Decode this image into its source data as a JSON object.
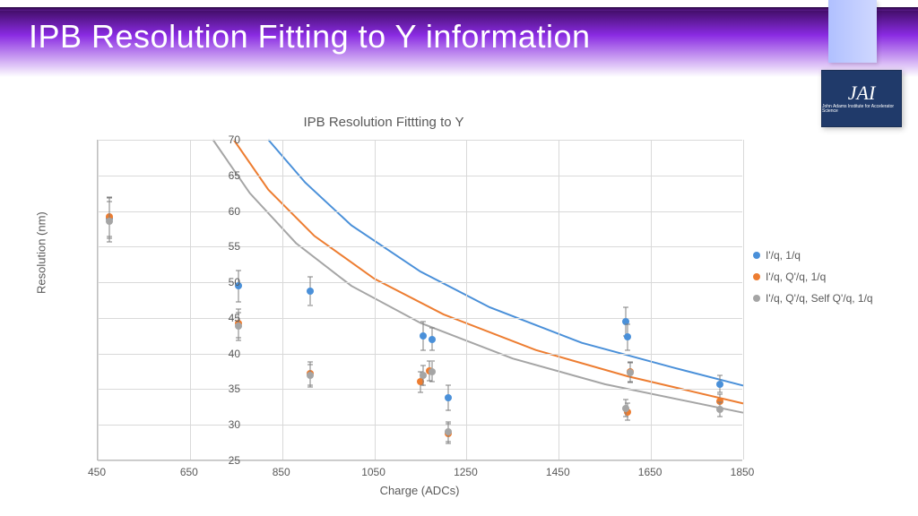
{
  "slide": {
    "title": "IPB Resolution Fitting to Y information",
    "logo": {
      "main": "JAI",
      "sub": "John Adams Institute\nfor Accelerator Science"
    }
  },
  "chart": {
    "type": "scatter-with-curves",
    "title": "IPB Resolution Fittting to Y",
    "xlabel": "Charge (ADCs)",
    "ylabel": "Resolution (nm)",
    "xlim": [
      450,
      1850
    ],
    "ylim": [
      25,
      70
    ],
    "xtick_step": 200,
    "ytick_step": 5,
    "background_color": "#ffffff",
    "grid_color": "#d9d9d9",
    "axis_color": "#bfbfbf",
    "text_color": "#595959",
    "title_fontsize": 15,
    "label_fontsize": 13,
    "tick_fontsize": 12,
    "marker_size": 8,
    "errorbar_color": "#7f7f7f",
    "series": [
      {
        "name": "I'/q, 1/q",
        "color": "#4a90d9",
        "points": [
          {
            "x": 475,
            "y": 59.0,
            "err": 2.8
          },
          {
            "x": 755,
            "y": 49.5,
            "err": 2.2
          },
          {
            "x": 910,
            "y": 48.8,
            "err": 2.0
          },
          {
            "x": 1155,
            "y": 42.5,
            "err": 2.0
          },
          {
            "x": 1175,
            "y": 42.0,
            "err": 1.6
          },
          {
            "x": 1210,
            "y": 33.8,
            "err": 1.8
          },
          {
            "x": 1595,
            "y": 44.5,
            "err": 2.0
          },
          {
            "x": 1600,
            "y": 42.3,
            "err": 1.8
          },
          {
            "x": 1800,
            "y": 35.7,
            "err": 1.2
          }
        ],
        "curve": [
          {
            "x": 820,
            "y": 70.0
          },
          {
            "x": 900,
            "y": 64.0
          },
          {
            "x": 1000,
            "y": 58.0
          },
          {
            "x": 1150,
            "y": 51.5
          },
          {
            "x": 1300,
            "y": 46.5
          },
          {
            "x": 1500,
            "y": 41.5
          },
          {
            "x": 1700,
            "y": 38.0
          },
          {
            "x": 1850,
            "y": 35.5
          }
        ]
      },
      {
        "name": "I'/q, Q'/q, 1/q",
        "color": "#ed7d31",
        "points": [
          {
            "x": 475,
            "y": 59.2,
            "err": 2.8
          },
          {
            "x": 755,
            "y": 44.2,
            "err": 2.0
          },
          {
            "x": 910,
            "y": 37.2,
            "err": 1.6
          },
          {
            "x": 1150,
            "y": 36.0,
            "err": 1.4
          },
          {
            "x": 1170,
            "y": 37.6,
            "err": 1.4
          },
          {
            "x": 1210,
            "y": 28.8,
            "err": 1.4
          },
          {
            "x": 1600,
            "y": 31.8,
            "err": 1.2
          },
          {
            "x": 1605,
            "y": 37.4,
            "err": 1.4
          },
          {
            "x": 1800,
            "y": 33.3,
            "err": 1.0
          }
        ],
        "curve": [
          {
            "x": 745,
            "y": 70.0
          },
          {
            "x": 820,
            "y": 63.0
          },
          {
            "x": 920,
            "y": 56.5
          },
          {
            "x": 1050,
            "y": 50.5
          },
          {
            "x": 1200,
            "y": 45.5
          },
          {
            "x": 1400,
            "y": 40.5
          },
          {
            "x": 1600,
            "y": 36.8
          },
          {
            "x": 1850,
            "y": 33.0
          }
        ]
      },
      {
        "name": "I'/q, Q'/q, Self Q'/q, 1/q",
        "color": "#a5a5a5",
        "points": [
          {
            "x": 475,
            "y": 58.5,
            "err": 2.8
          },
          {
            "x": 755,
            "y": 43.8,
            "err": 2.0
          },
          {
            "x": 910,
            "y": 36.9,
            "err": 1.6
          },
          {
            "x": 1155,
            "y": 36.9,
            "err": 1.4
          },
          {
            "x": 1175,
            "y": 37.5,
            "err": 1.4
          },
          {
            "x": 1210,
            "y": 29.0,
            "err": 1.4
          },
          {
            "x": 1595,
            "y": 32.3,
            "err": 1.2
          },
          {
            "x": 1605,
            "y": 37.3,
            "err": 1.4
          },
          {
            "x": 1800,
            "y": 32.2,
            "err": 1.0
          }
        ],
        "curve": [
          {
            "x": 700,
            "y": 70.0
          },
          {
            "x": 780,
            "y": 62.5
          },
          {
            "x": 880,
            "y": 55.5
          },
          {
            "x": 1000,
            "y": 49.5
          },
          {
            "x": 1150,
            "y": 44.3
          },
          {
            "x": 1350,
            "y": 39.3
          },
          {
            "x": 1550,
            "y": 35.7
          },
          {
            "x": 1850,
            "y": 31.7
          }
        ]
      }
    ]
  }
}
